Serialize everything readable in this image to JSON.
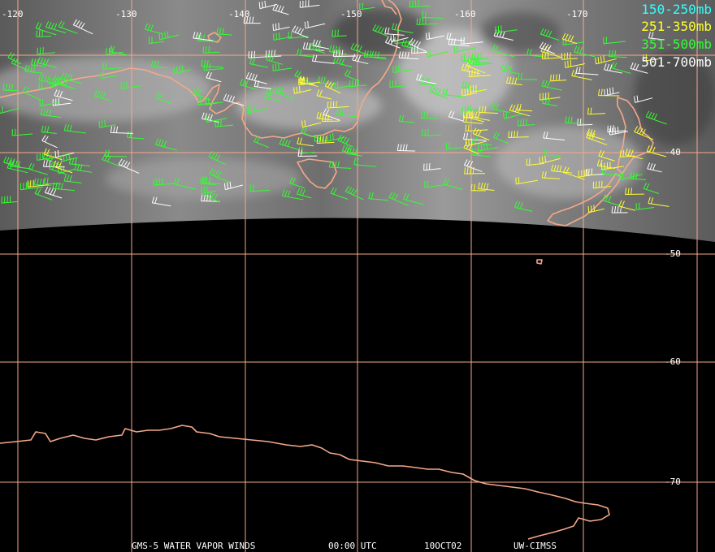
{
  "legend": {
    "entries": [
      {
        "label": "150-250mb",
        "color": "#33ffff"
      },
      {
        "label": "251-350mb",
        "color": "#ffff33"
      },
      {
        "label": "351-500mb",
        "color": "#33ff33"
      },
      {
        "label": "501-700mb",
        "color": "#ffffff"
      }
    ]
  },
  "grid": {
    "longitude_labels": [
      "-120",
      "-130",
      "-140",
      "-150",
      "-160",
      "-170"
    ],
    "latitude_labels": [
      "-40",
      "-50",
      "-60",
      "-70"
    ]
  },
  "footer": {
    "product": "GMS-5 WATER VAPOR WINDS",
    "time": "00:00 UTC",
    "date": "10OCT02",
    "source": "UW-CIMSS"
  },
  "colors": {
    "coastline": "#f5a889",
    "grid": "#f5a889",
    "background": "#000000"
  }
}
